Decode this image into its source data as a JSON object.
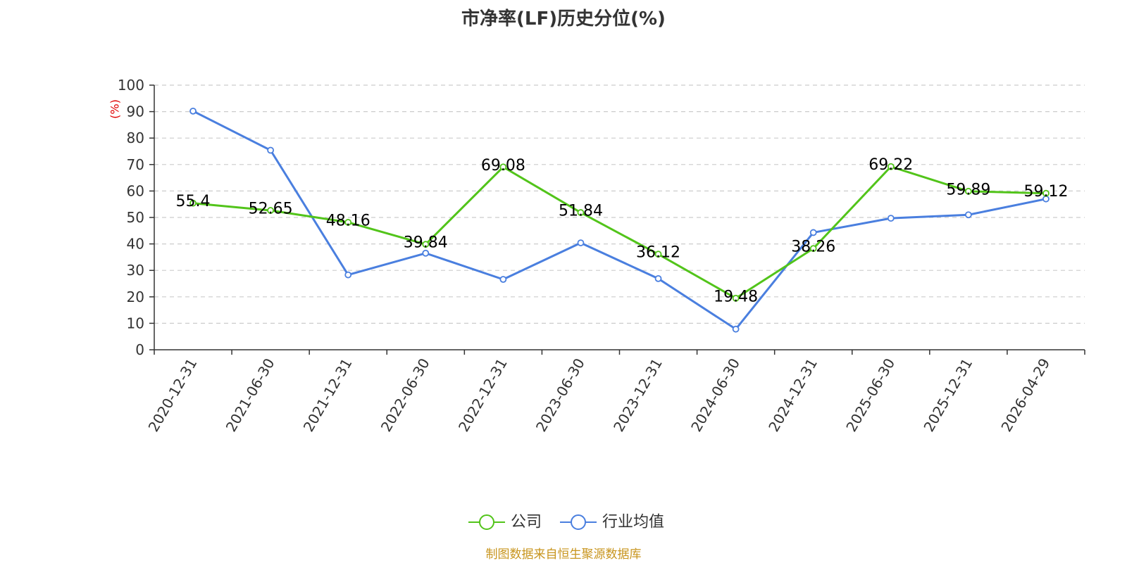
{
  "chart_data": {
    "type": "line",
    "title": "市净率(LF)历史分位(%)",
    "ylabel": "(%)",
    "xlabel": "",
    "ylim": [
      0,
      100
    ],
    "yticks": [
      0,
      10,
      20,
      30,
      40,
      50,
      60,
      70,
      80,
      90,
      100
    ],
    "grid": true,
    "legend_position": "bottom",
    "categories": [
      "2020-12-31",
      "2021-06-30",
      "2021-12-31",
      "2022-06-30",
      "2022-12-31",
      "2023-06-30",
      "2023-12-31",
      "2024-06-30",
      "2024-12-31",
      "2025-06-30",
      "2025-12-31",
      "2026-04-29"
    ],
    "series": [
      {
        "name": "公司",
        "color": "#52c41a",
        "values": [
          55.4,
          52.65,
          48.16,
          39.84,
          69.08,
          51.84,
          36.12,
          19.48,
          38.26,
          69.22,
          59.89,
          59.12
        ],
        "labels": [
          "55.4",
          "52.65",
          "48.16",
          "39.84",
          "69.08",
          "51.84",
          "36.12",
          "19.48",
          "38.26",
          "69.22",
          "59.89",
          "59.12"
        ],
        "show_labels": true
      },
      {
        "name": "行业均值",
        "color": "#4a7fdf",
        "values": [
          90.2,
          75.4,
          28.3,
          36.5,
          26.6,
          40.4,
          26.9,
          7.8,
          44.3,
          49.7,
          51.0,
          57.0
        ],
        "show_labels": false
      }
    ]
  },
  "footer": "制图数据来自恒生聚源数据库"
}
